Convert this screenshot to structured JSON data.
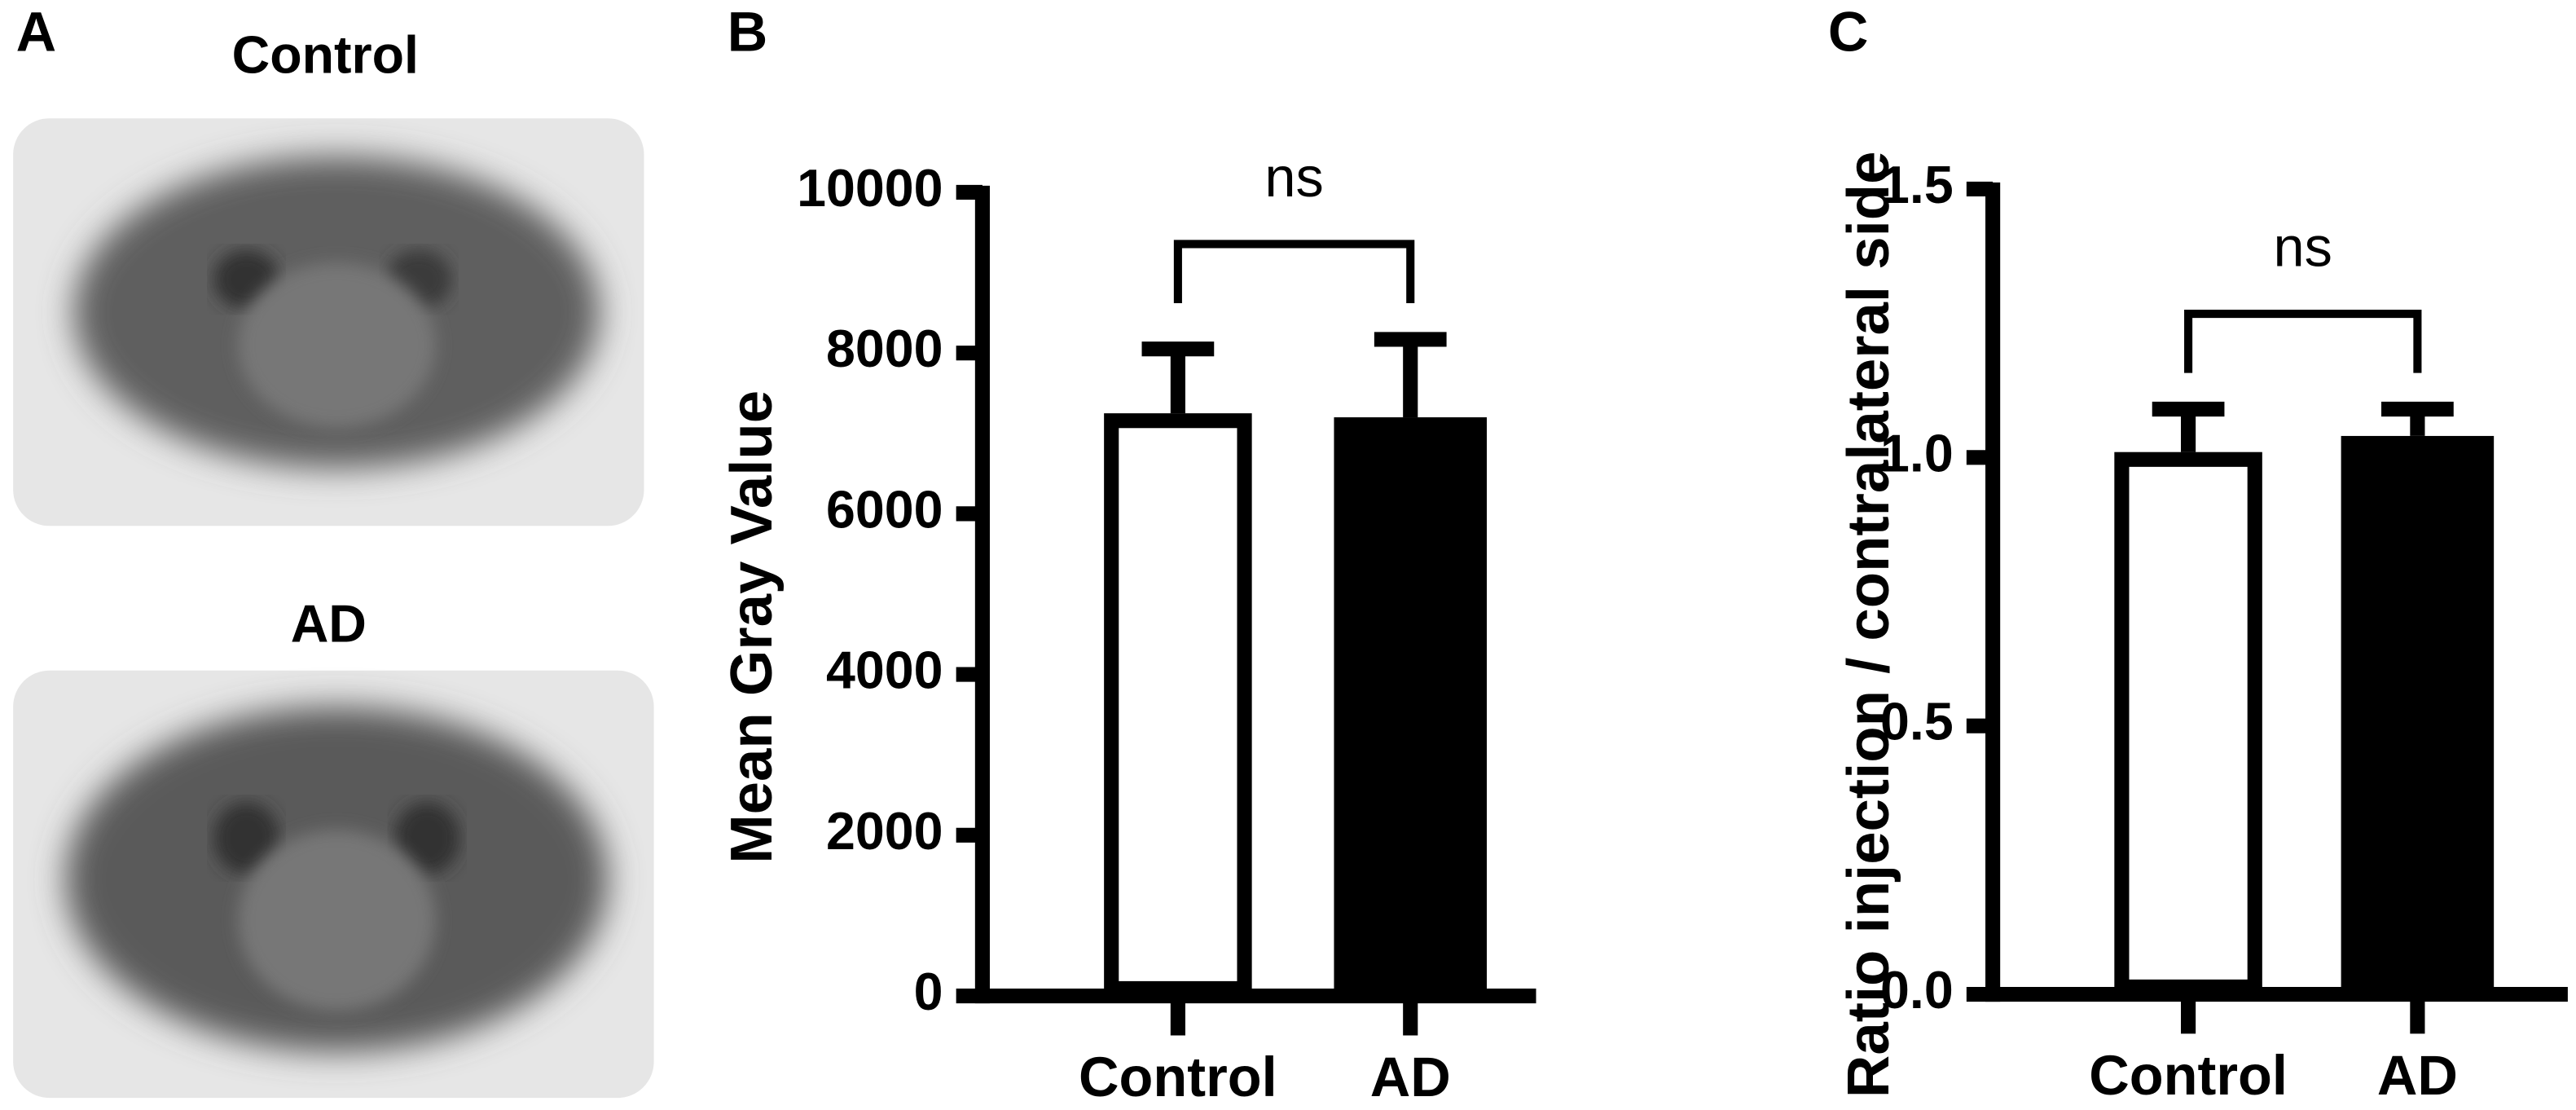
{
  "panel_a": {
    "label": "A",
    "images": [
      {
        "title": "Control"
      },
      {
        "title": "AD"
      }
    ]
  },
  "chart_data": [
    {
      "type": "bar",
      "label": "B",
      "ylabel": "Mean Gray Value",
      "annotation": "ns",
      "categories": [
        "Control",
        "AD"
      ],
      "values": [
        7250,
        7200
      ],
      "errors": [
        800,
        970
      ],
      "colors": [
        "#ffffff",
        "#000000"
      ],
      "ylim": [
        0,
        10000
      ],
      "yticks": [
        0,
        2000,
        4000,
        6000,
        8000,
        10000
      ]
    },
    {
      "type": "bar",
      "label": "C",
      "ylabel": "Ratio injection / contralateral side",
      "annotation": "ns",
      "categories": [
        "Control",
        "AD"
      ],
      "values": [
        1.01,
        1.04
      ],
      "errors": [
        0.08,
        0.05
      ],
      "colors": [
        "#ffffff",
        "#000000"
      ],
      "ylim": [
        0,
        1.5
      ],
      "yticks": [
        {
          "value": 0,
          "label": "0.0"
        },
        0.5,
        {
          "value": 1,
          "label": "1.0"
        },
        1.5
      ]
    }
  ]
}
